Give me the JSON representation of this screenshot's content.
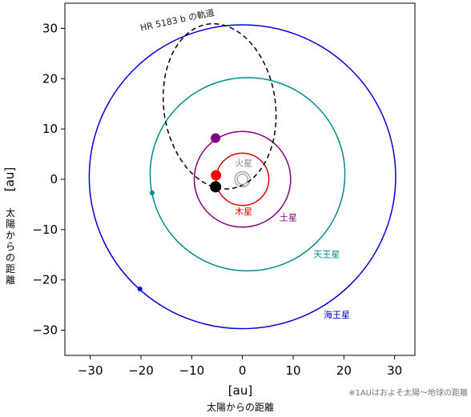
{
  "chart_data": {
    "type": "scatter",
    "xlabel": "[au]",
    "xlabel_sub": "太陽からの距離",
    "ylabel": "[au]",
    "ylabel_sub": "太陽からの距離",
    "xlim": [
      -35,
      34
    ],
    "ylim": [
      -35,
      35
    ],
    "xticks": [
      -30,
      -20,
      -10,
      0,
      10,
      20,
      30
    ],
    "yticks": [
      -30,
      -20,
      -10,
      0,
      10,
      20,
      30
    ],
    "grid": false,
    "orbits": [
      {
        "name": "火星",
        "color": "#aaaaaa",
        "center": [
          0,
          0
        ],
        "rx": 1.5,
        "ry": 1.5,
        "style": "solid"
      },
      {
        "name": "木星",
        "color": "#e00000",
        "center": [
          0,
          0
        ],
        "rx": 5.2,
        "ry": 5.2,
        "style": "solid"
      },
      {
        "name": "土星",
        "color": "#800080",
        "center": [
          0,
          0
        ],
        "rx": 9.5,
        "ry": 9.5,
        "style": "solid"
      },
      {
        "name": "天王星",
        "color": "#008b8b",
        "center": [
          1,
          1
        ],
        "rx": 19.2,
        "ry": 19.2,
        "style": "solid"
      },
      {
        "name": "海王星",
        "color": "#0000dd",
        "center": [
          0,
          0.5
        ],
        "rx": 30.2,
        "ry": 30.2,
        "style": "solid"
      },
      {
        "name": "HR 5183 b の軌道",
        "color": "#000000",
        "center": [
          -4.5,
          14.5
        ],
        "rx": 11.0,
        "ry": 16.5,
        "rotation_deg": -8,
        "style": "dashed"
      }
    ],
    "points": [
      {
        "name": "sun",
        "x": 0,
        "y": 0,
        "color": "#aaaaaa",
        "hollow": true,
        "size": 13
      },
      {
        "name": "red-body",
        "x": -5.2,
        "y": 0.8,
        "color": "#ff0000",
        "hollow": false,
        "size": 13
      },
      {
        "name": "black-body",
        "x": -5.3,
        "y": -1.5,
        "color": "#000000",
        "hollow": false,
        "size": 14
      },
      {
        "name": "purple-body",
        "x": -5.3,
        "y": 8.2,
        "color": "#800080",
        "hollow": false,
        "size": 12
      },
      {
        "name": "teal-body",
        "x": -17.8,
        "y": -2.7,
        "color": "#008b8b",
        "hollow": false,
        "size": 6
      },
      {
        "name": "blue-body",
        "x": -20.2,
        "y": -21.8,
        "color": "#0000ee",
        "hollow": false,
        "size": 6
      }
    ],
    "annotations": [
      {
        "text": "HR 5183 b の軌道",
        "x": -20.0,
        "y": 29.5,
        "color": "#222222",
        "rotate": -12
      },
      {
        "text": "火星",
        "x": -1.5,
        "y": 2.6,
        "color": "#888888",
        "rotate": 0
      },
      {
        "text": "木星",
        "x": -1.5,
        "y": -7.0,
        "color": "#e00000",
        "rotate": 0
      },
      {
        "text": "土星",
        "x": 7.3,
        "y": -8.2,
        "color": "#800080",
        "rotate": 0
      },
      {
        "text": "天王星",
        "x": 14.0,
        "y": -15.5,
        "color": "#008b8b",
        "rotate": 0
      },
      {
        "text": "海王星",
        "x": 16.0,
        "y": -27.5,
        "color": "#0000dd",
        "rotate": 0
      }
    ],
    "footnote": "※1AUはおよそ太陽〜地球の距離"
  }
}
